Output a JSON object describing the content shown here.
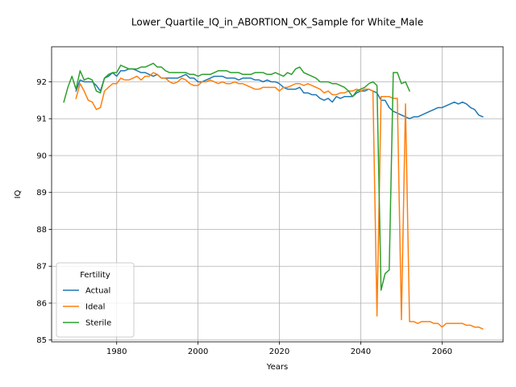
{
  "chart_data": {
    "type": "line",
    "title": "Lower_Quartile_IQ_in_ABORTION_OK_Sample for White_Male",
    "xlabel": "Years",
    "ylabel": "IQ",
    "xlim": [
      1964,
      2075
    ],
    "ylim": [
      84.95,
      92.95
    ],
    "x_ticks": [
      1980,
      2000,
      2020,
      2040,
      2060
    ],
    "y_ticks": [
      85,
      86,
      87,
      88,
      89,
      90,
      91,
      92
    ],
    "grid": true,
    "legend": {
      "title": "Fertility",
      "placement": "lower-left"
    },
    "series": [
      {
        "name": "Actual",
        "color": "#1f77b4",
        "points": [
          [
            1970,
            91.75
          ],
          [
            1971,
            92.05
          ],
          [
            1972,
            92.0
          ],
          [
            1973,
            92.0
          ],
          [
            1974,
            92.0
          ],
          [
            1975,
            91.9
          ],
          [
            1976,
            91.75
          ],
          [
            1977,
            92.1
          ],
          [
            1978,
            92.15
          ],
          [
            1979,
            92.25
          ],
          [
            1980,
            92.15
          ],
          [
            1981,
            92.3
          ],
          [
            1982,
            92.3
          ],
          [
            1983,
            92.35
          ],
          [
            1984,
            92.35
          ],
          [
            1985,
            92.3
          ],
          [
            1986,
            92.25
          ],
          [
            1987,
            92.25
          ],
          [
            1988,
            92.2
          ],
          [
            1989,
            92.15
          ],
          [
            1990,
            92.2
          ],
          [
            1991,
            92.1
          ],
          [
            1992,
            92.1
          ],
          [
            1993,
            92.1
          ],
          [
            1994,
            92.1
          ],
          [
            1995,
            92.1
          ],
          [
            1996,
            92.15
          ],
          [
            1997,
            92.2
          ],
          [
            1998,
            92.1
          ],
          [
            1999,
            92.1
          ],
          [
            2000,
            92.0
          ],
          [
            2001,
            92.0
          ],
          [
            2002,
            92.05
          ],
          [
            2003,
            92.1
          ],
          [
            2004,
            92.15
          ],
          [
            2005,
            92.15
          ],
          [
            2006,
            92.15
          ],
          [
            2007,
            92.1
          ],
          [
            2008,
            92.1
          ],
          [
            2009,
            92.1
          ],
          [
            2010,
            92.05
          ],
          [
            2011,
            92.1
          ],
          [
            2012,
            92.1
          ],
          [
            2013,
            92.1
          ],
          [
            2014,
            92.05
          ],
          [
            2015,
            92.05
          ],
          [
            2016,
            92.0
          ],
          [
            2017,
            92.05
          ],
          [
            2018,
            92.0
          ],
          [
            2019,
            92.0
          ],
          [
            2020,
            91.95
          ],
          [
            2021,
            91.85
          ],
          [
            2022,
            91.8
          ],
          [
            2023,
            91.8
          ],
          [
            2024,
            91.8
          ],
          [
            2025,
            91.85
          ],
          [
            2026,
            91.7
          ],
          [
            2027,
            91.7
          ],
          [
            2028,
            91.65
          ],
          [
            2029,
            91.65
          ],
          [
            2030,
            91.55
          ],
          [
            2031,
            91.5
          ],
          [
            2032,
            91.55
          ],
          [
            2033,
            91.45
          ],
          [
            2034,
            91.6
          ],
          [
            2035,
            91.55
          ],
          [
            2036,
            91.6
          ],
          [
            2037,
            91.6
          ],
          [
            2038,
            91.6
          ],
          [
            2039,
            91.7
          ],
          [
            2040,
            91.75
          ],
          [
            2041,
            91.75
          ],
          [
            2042,
            91.8
          ],
          [
            2043,
            91.75
          ],
          [
            2044,
            91.7
          ],
          [
            2045,
            91.5
          ],
          [
            2046,
            91.5
          ],
          [
            2047,
            91.3
          ],
          [
            2048,
            91.2
          ],
          [
            2049,
            91.15
          ],
          [
            2050,
            91.1
          ],
          [
            2051,
            91.05
          ],
          [
            2052,
            91.0
          ],
          [
            2053,
            91.05
          ],
          [
            2054,
            91.05
          ],
          [
            2055,
            91.1
          ],
          [
            2056,
            91.15
          ],
          [
            2057,
            91.2
          ],
          [
            2058,
            91.25
          ],
          [
            2059,
            91.3
          ],
          [
            2060,
            91.3
          ],
          [
            2061,
            91.35
          ],
          [
            2062,
            91.4
          ],
          [
            2063,
            91.45
          ],
          [
            2064,
            91.4
          ],
          [
            2065,
            91.45
          ],
          [
            2066,
            91.4
          ],
          [
            2067,
            91.3
          ],
          [
            2068,
            91.25
          ],
          [
            2069,
            91.1
          ],
          [
            2070,
            91.05
          ]
        ]
      },
      {
        "name": "Ideal",
        "color": "#ff7f0e",
        "points": [
          [
            1970,
            91.55
          ],
          [
            1971,
            91.95
          ],
          [
            1972,
            91.75
          ],
          [
            1973,
            91.5
          ],
          [
            1974,
            91.45
          ],
          [
            1975,
            91.25
          ],
          [
            1976,
            91.3
          ],
          [
            1977,
            91.75
          ],
          [
            1978,
            91.85
          ],
          [
            1979,
            91.95
          ],
          [
            1980,
            91.95
          ],
          [
            1981,
            92.1
          ],
          [
            1982,
            92.05
          ],
          [
            1983,
            92.05
          ],
          [
            1984,
            92.1
          ],
          [
            1985,
            92.15
          ],
          [
            1986,
            92.05
          ],
          [
            1987,
            92.15
          ],
          [
            1988,
            92.15
          ],
          [
            1989,
            92.25
          ],
          [
            1990,
            92.2
          ],
          [
            1991,
            92.1
          ],
          [
            1992,
            92.1
          ],
          [
            1993,
            92.0
          ],
          [
            1994,
            91.95
          ],
          [
            1995,
            92.0
          ],
          [
            1996,
            92.1
          ],
          [
            1997,
            92.05
          ],
          [
            1998,
            91.95
          ],
          [
            1999,
            91.9
          ],
          [
            2000,
            91.9
          ],
          [
            2001,
            92.0
          ],
          [
            2002,
            92.0
          ],
          [
            2003,
            92.05
          ],
          [
            2004,
            92.0
          ],
          [
            2005,
            91.95
          ],
          [
            2006,
            92.0
          ],
          [
            2007,
            91.95
          ],
          [
            2008,
            91.95
          ],
          [
            2009,
            92.0
          ],
          [
            2010,
            91.95
          ],
          [
            2011,
            91.95
          ],
          [
            2012,
            91.9
          ],
          [
            2013,
            91.85
          ],
          [
            2014,
            91.8
          ],
          [
            2015,
            91.8
          ],
          [
            2016,
            91.85
          ],
          [
            2017,
            91.85
          ],
          [
            2018,
            91.85
          ],
          [
            2019,
            91.85
          ],
          [
            2020,
            91.75
          ],
          [
            2021,
            91.85
          ],
          [
            2022,
            91.85
          ],
          [
            2023,
            91.9
          ],
          [
            2024,
            91.95
          ],
          [
            2025,
            91.95
          ],
          [
            2026,
            91.9
          ],
          [
            2027,
            91.95
          ],
          [
            2028,
            91.9
          ],
          [
            2029,
            91.85
          ],
          [
            2030,
            91.8
          ],
          [
            2031,
            91.7
          ],
          [
            2032,
            91.75
          ],
          [
            2033,
            91.65
          ],
          [
            2034,
            91.65
          ],
          [
            2035,
            91.7
          ],
          [
            2036,
            91.7
          ],
          [
            2037,
            91.75
          ],
          [
            2038,
            91.75
          ],
          [
            2039,
            91.8
          ],
          [
            2040,
            91.75
          ],
          [
            2041,
            91.8
          ],
          [
            2042,
            91.8
          ],
          [
            2043,
            91.75
          ],
          [
            2044,
            85.65
          ],
          [
            2045,
            91.6
          ],
          [
            2046,
            91.6
          ],
          [
            2047,
            91.6
          ],
          [
            2048,
            91.55
          ],
          [
            2049,
            91.55
          ],
          [
            2050,
            85.55
          ],
          [
            2051,
            91.4
          ],
          [
            2052,
            85.5
          ],
          [
            2053,
            85.5
          ],
          [
            2054,
            85.45
          ],
          [
            2055,
            85.5
          ],
          [
            2056,
            85.5
          ],
          [
            2057,
            85.5
          ],
          [
            2058,
            85.45
          ],
          [
            2059,
            85.45
          ],
          [
            2060,
            85.35
          ],
          [
            2061,
            85.45
          ],
          [
            2062,
            85.45
          ],
          [
            2063,
            85.45
          ],
          [
            2064,
            85.45
          ],
          [
            2065,
            85.45
          ],
          [
            2066,
            85.4
          ],
          [
            2067,
            85.4
          ],
          [
            2068,
            85.35
          ],
          [
            2069,
            85.35
          ],
          [
            2070,
            85.3
          ]
        ]
      },
      {
        "name": "Sterile",
        "color": "#2ca02c",
        "points": [
          [
            1967,
            91.45
          ],
          [
            1968,
            91.85
          ],
          [
            1969,
            92.15
          ],
          [
            1970,
            91.8
          ],
          [
            1971,
            92.3
          ],
          [
            1972,
            92.05
          ],
          [
            1973,
            92.1
          ],
          [
            1974,
            92.05
          ],
          [
            1975,
            91.75
          ],
          [
            1976,
            91.7
          ],
          [
            1977,
            92.1
          ],
          [
            1978,
            92.2
          ],
          [
            1979,
            92.25
          ],
          [
            1980,
            92.25
          ],
          [
            1981,
            92.45
          ],
          [
            1982,
            92.4
          ],
          [
            1983,
            92.35
          ],
          [
            1984,
            92.35
          ],
          [
            1985,
            92.35
          ],
          [
            1986,
            92.4
          ],
          [
            1987,
            92.4
          ],
          [
            1988,
            92.45
          ],
          [
            1989,
            92.5
          ],
          [
            1990,
            92.4
          ],
          [
            1991,
            92.4
          ],
          [
            1992,
            92.3
          ],
          [
            1993,
            92.25
          ],
          [
            1994,
            92.25
          ],
          [
            1995,
            92.25
          ],
          [
            1996,
            92.25
          ],
          [
            1997,
            92.25
          ],
          [
            1998,
            92.2
          ],
          [
            1999,
            92.2
          ],
          [
            2000,
            92.15
          ],
          [
            2001,
            92.2
          ],
          [
            2002,
            92.2
          ],
          [
            2003,
            92.2
          ],
          [
            2004,
            92.25
          ],
          [
            2005,
            92.3
          ],
          [
            2006,
            92.3
          ],
          [
            2007,
            92.3
          ],
          [
            2008,
            92.25
          ],
          [
            2009,
            92.25
          ],
          [
            2010,
            92.25
          ],
          [
            2011,
            92.2
          ],
          [
            2012,
            92.2
          ],
          [
            2013,
            92.2
          ],
          [
            2014,
            92.25
          ],
          [
            2015,
            92.25
          ],
          [
            2016,
            92.25
          ],
          [
            2017,
            92.2
          ],
          [
            2018,
            92.2
          ],
          [
            2019,
            92.25
          ],
          [
            2020,
            92.2
          ],
          [
            2021,
            92.15
          ],
          [
            2022,
            92.25
          ],
          [
            2023,
            92.2
          ],
          [
            2024,
            92.35
          ],
          [
            2025,
            92.4
          ],
          [
            2026,
            92.25
          ],
          [
            2027,
            92.2
          ],
          [
            2028,
            92.15
          ],
          [
            2029,
            92.1
          ],
          [
            2030,
            92.0
          ],
          [
            2031,
            92.0
          ],
          [
            2032,
            92.0
          ],
          [
            2033,
            91.95
          ],
          [
            2034,
            91.95
          ],
          [
            2035,
            91.9
          ],
          [
            2036,
            91.85
          ],
          [
            2037,
            91.75
          ],
          [
            2038,
            91.6
          ],
          [
            2039,
            91.75
          ],
          [
            2040,
            91.8
          ],
          [
            2041,
            91.85
          ],
          [
            2042,
            91.95
          ],
          [
            2043,
            92.0
          ],
          [
            2044,
            91.9
          ],
          [
            2045,
            86.35
          ],
          [
            2046,
            86.8
          ],
          [
            2047,
            86.9
          ],
          [
            2048,
            92.25
          ],
          [
            2049,
            92.25
          ],
          [
            2050,
            91.95
          ],
          [
            2051,
            92.0
          ],
          [
            2052,
            91.75
          ]
        ]
      }
    ]
  }
}
